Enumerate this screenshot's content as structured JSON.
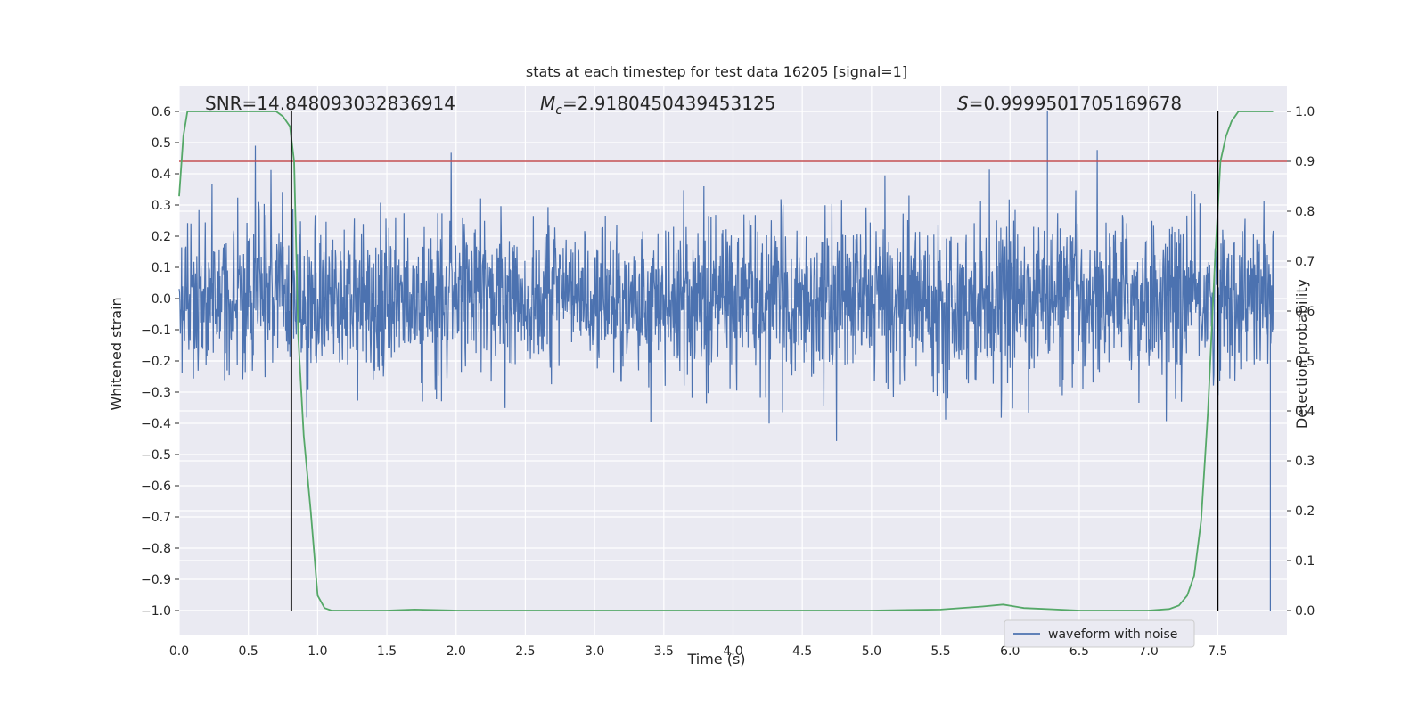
{
  "chart_data": {
    "type": "line",
    "title": "stats at each timestep for test data 16205 [signal=1]",
    "xlabel": "Time (s)",
    "ylabel": "Whitened strain",
    "y2label": "Detection probability",
    "xlim": [
      0.0,
      8.0
    ],
    "ylim": [
      -1.08,
      0.68
    ],
    "y2lim": [
      -0.05,
      1.05
    ],
    "x_ticks": [
      "0.0",
      "0.5",
      "1.0",
      "1.5",
      "2.0",
      "2.5",
      "3.0",
      "3.5",
      "4.0",
      "4.5",
      "5.0",
      "5.5",
      "6.0",
      "6.5",
      "7.0",
      "7.5"
    ],
    "y_ticks": [
      "0.6",
      "0.5",
      "0.4",
      "0.3",
      "0.2",
      "0.1",
      "0.0",
      "-0.1",
      "-0.2",
      "-0.3",
      "-0.4",
      "-0.5",
      "-0.6",
      "-0.7",
      "-0.8",
      "-0.9",
      "-1.0"
    ],
    "y2_ticks": [
      "1.0",
      "0.9",
      "0.8",
      "0.7",
      "0.6",
      "0.5",
      "0.4",
      "0.3",
      "0.2",
      "0.1",
      "0.0"
    ],
    "grid": true,
    "legend_position": "lower-right",
    "annotations": {
      "snr": "SNR=14.848093032836914",
      "mc_symbol": "M",
      "mc_sub": "c",
      "mc_value": "=2.9180450439453125",
      "s_symbol": "S",
      "s_value": "=0.9999501705169678"
    },
    "series": [
      {
        "name": "waveform with noise",
        "axis": "left",
        "color": "#4c72b0",
        "kind": "noise",
        "duration": 8.0,
        "typical_amplitude": 0.27,
        "min": -1.0,
        "max": 0.6
      },
      {
        "axis": "right",
        "color": "#55a868",
        "x": [
          0.0,
          0.03,
          0.06,
          0.12,
          0.2,
          0.4,
          0.6,
          0.7,
          0.75,
          0.8,
          0.83,
          0.86,
          0.9,
          0.95,
          1.0,
          1.05,
          1.1,
          1.2,
          1.5,
          1.7,
          2.0,
          3.0,
          4.0,
          5.0,
          5.5,
          5.8,
          5.95,
          6.1,
          6.5,
          7.0,
          7.15,
          7.22,
          7.28,
          7.33,
          7.38,
          7.43,
          7.48,
          7.52,
          7.56,
          7.6,
          7.65,
          7.7,
          7.8,
          7.9
        ],
        "y": [
          0.83,
          0.95,
          1.0,
          1.0,
          1.0,
          1.0,
          1.0,
          1.0,
          0.99,
          0.97,
          0.9,
          0.55,
          0.35,
          0.2,
          0.03,
          0.005,
          0.0,
          0.0,
          0.0,
          0.002,
          0.0,
          0.0,
          0.0,
          0.0,
          0.002,
          0.008,
          0.012,
          0.005,
          0.0,
          0.0,
          0.003,
          0.01,
          0.03,
          0.07,
          0.18,
          0.4,
          0.7,
          0.9,
          0.95,
          0.98,
          1.0,
          1.0,
          1.0,
          1.0
        ]
      }
    ],
    "threshold": {
      "axis": "right",
      "value": 0.9,
      "color": "#c44e52"
    },
    "vertical_lines": [
      {
        "x": 0.81,
        "color": "#000000"
      },
      {
        "x": 7.5,
        "color": "#000000"
      }
    ],
    "background": "#eaeaf2",
    "grid_color": "#ffffff"
  }
}
